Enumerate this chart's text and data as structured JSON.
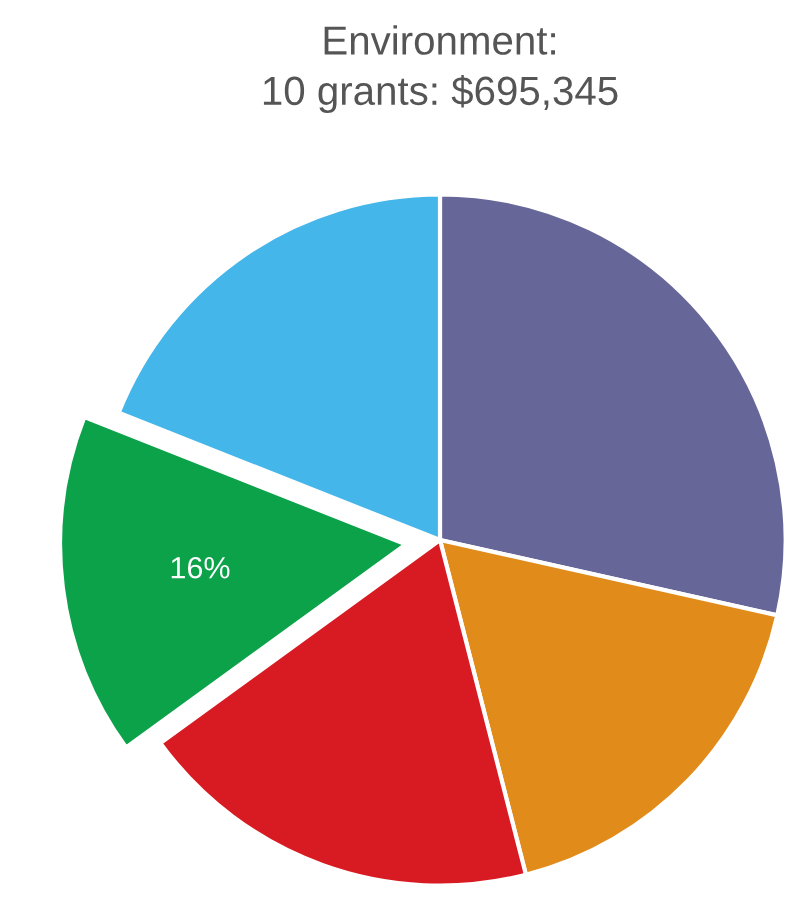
{
  "chart_data": {
    "type": "pie",
    "title": "Environment:",
    "subtitle": "10 grants: $695,345",
    "categories": [
      null,
      null,
      null,
      null,
      null
    ],
    "values": [
      28.5,
      17.5,
      19,
      16,
      19
    ],
    "colors": [
      "#666699",
      "#e08b1a",
      "#d81b23",
      "#0ba24a",
      "#45b6ea"
    ],
    "value_labels": [
      null,
      null,
      null,
      "16%",
      null
    ]
  }
}
